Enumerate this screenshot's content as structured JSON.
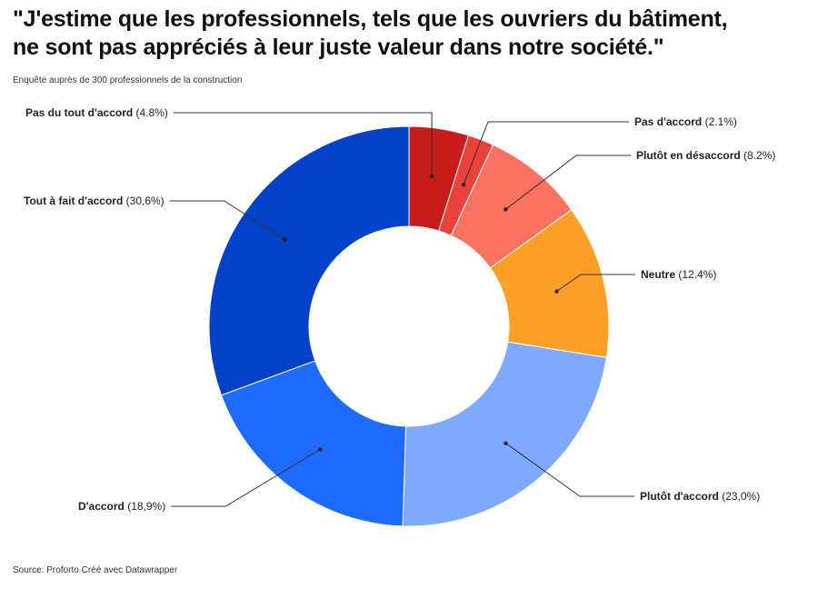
{
  "title_lines": [
    "\"J'estime que les professionnels, tels que les ouvriers du bâtiment,",
    "ne sont pas appréciés à leur juste valeur dans notre société.\""
  ],
  "subtitle": "Enquête auprès de 300 professionnels de la construction",
  "source": "Source: Proforto Créé avec Datawrapper",
  "chart_data": {
    "type": "pie",
    "donut": true,
    "slices": [
      {
        "name": "Pas du tout d'accord",
        "value_label": "(4.8%)",
        "value": 4.8,
        "color": "#c81c1c"
      },
      {
        "name": "Pas d'accord",
        "value_label": "(2.1%)",
        "value": 2.1,
        "color": "#e8423a"
      },
      {
        "name": "Plutôt en désaccord",
        "value_label": "(8.2%)",
        "value": 8.2,
        "color": "#fc7261"
      },
      {
        "name": "Neutre",
        "value_label": "(12.4%)",
        "value": 12.4,
        "color": "#ff9f28"
      },
      {
        "name": "Plutôt d'accord",
        "value_label": "(23,0%)",
        "value": 23.0,
        "color": "#7fa8ff"
      },
      {
        "name": "D'accord",
        "value_label": "(18,9%)",
        "value": 18.9,
        "color": "#1f6bff"
      },
      {
        "name": "Tout à fait d'accord",
        "value_label": "(30,6%)",
        "value": 30.6,
        "color": "#0341c9"
      }
    ]
  }
}
